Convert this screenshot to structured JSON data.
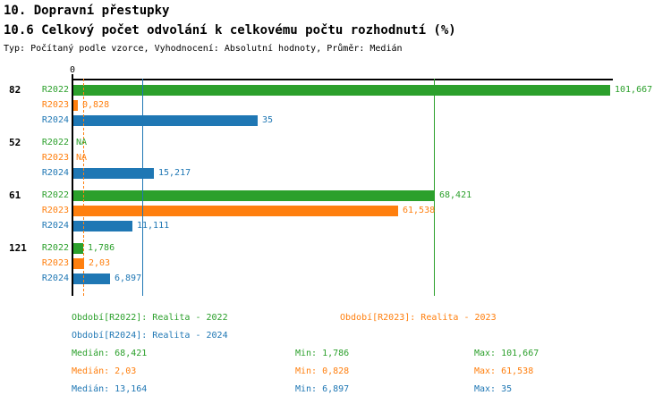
{
  "header": {
    "title_line1": "10. Dopravní přestupky",
    "title_line2": "10.6 Celkový počet odvolání k celkovému počtu rozhodnutí (%)",
    "meta": "Typ: Počítaný podle vzorce, Vyhodnocení: Absolutní hodnoty, Průměr: Medián"
  },
  "chart_data": {
    "type": "bar",
    "orientation": "horizontal",
    "axis": {
      "tick_label": "0",
      "min": 0,
      "max": 102.4,
      "grid": false
    },
    "series": [
      "R2022",
      "R2023",
      "R2024"
    ],
    "series_colors": {
      "R2022": "#2ca02c",
      "R2023": "#ff7f0e",
      "R2024": "#1f77b4"
    },
    "groups": [
      {
        "label": "82",
        "bars": [
          {
            "series": "R2022",
            "value": 101.667,
            "display": "101,667"
          },
          {
            "series": "R2023",
            "value": 0.828,
            "display": "0,828"
          },
          {
            "series": "R2024",
            "value": 35,
            "display": "35"
          }
        ]
      },
      {
        "label": "52",
        "bars": [
          {
            "series": "R2022",
            "value": null,
            "display": "NA"
          },
          {
            "series": "R2023",
            "value": null,
            "display": "NA"
          },
          {
            "series": "R2024",
            "value": 15.217,
            "display": "15,217"
          }
        ]
      },
      {
        "label": "61",
        "bars": [
          {
            "series": "R2022",
            "value": 68.421,
            "display": "68,421"
          },
          {
            "series": "R2023",
            "value": 61.538,
            "display": "61,538"
          },
          {
            "series": "R2024",
            "value": 11.111,
            "display": "11,111"
          }
        ]
      },
      {
        "label": "121",
        "bars": [
          {
            "series": "R2022",
            "value": 1.786,
            "display": "1,786"
          },
          {
            "series": "R2023",
            "value": 2.03,
            "display": "2,03"
          },
          {
            "series": "R2024",
            "value": 6.897,
            "display": "6,897"
          }
        ]
      }
    ],
    "median_lines": [
      {
        "series": "R2022",
        "value": 68.421,
        "style": "solid"
      },
      {
        "series": "R2023",
        "value": 2.03,
        "style": "dashed"
      },
      {
        "series": "R2024",
        "value": 13.164,
        "style": "solid"
      }
    ]
  },
  "legend": {
    "items": [
      {
        "series": "R2022",
        "label": "Období[R2022]: Realita - 2022"
      },
      {
        "series": "R2023",
        "label": "Období[R2023]: Realita - 2023"
      },
      {
        "series": "R2024",
        "label": "Období[R2024]: Realita - 2024"
      }
    ]
  },
  "stats": {
    "rows": [
      {
        "series": "R2022",
        "median_text": "Medián: 68,421",
        "min_text": "Min: 1,786",
        "max_text": "Max: 101,667"
      },
      {
        "series": "R2023",
        "median_text": "Medián: 2,03",
        "min_text": "Min: 0,828",
        "max_text": "Max: 61,538"
      },
      {
        "series": "R2024",
        "median_text": "Medián: 13,164",
        "min_text": "Min: 6,897",
        "max_text": "Max: 35"
      }
    ]
  }
}
